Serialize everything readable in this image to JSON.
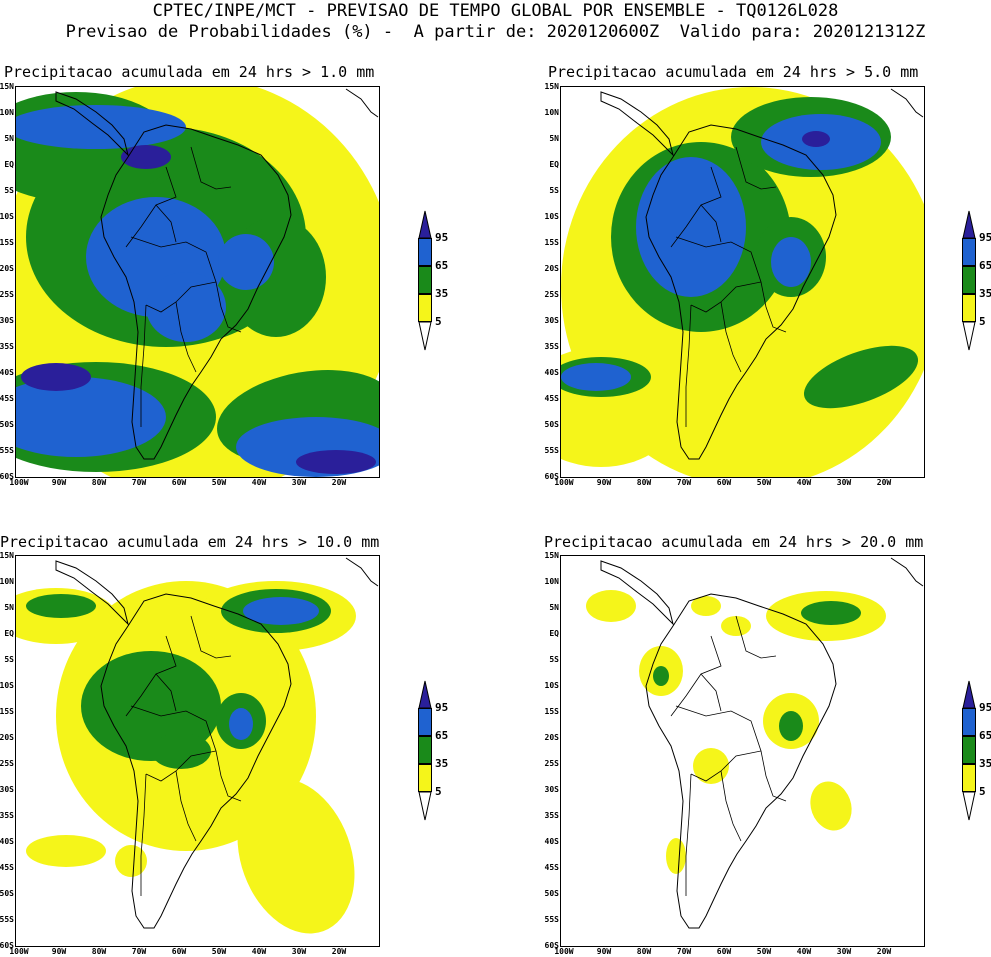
{
  "header": {
    "line1": "CPTEC/INPE/MCT - PREVISAO DE TEMPO GLOBAL POR ENSEMBLE - TQ0126L028",
    "line2": "Previsao de Probabilidades (%) -  A partir de: 2020120600Z  Valido para: 2020121312Z"
  },
  "panels": [
    {
      "title": "Precipitacao acumulada em 24 hrs > 1.0 mm"
    },
    {
      "title": "Precipitacao acumulada em 24 hrs > 5.0 mm"
    },
    {
      "title": "Precipitacao acumulada em 24 hrs > 10.0 mm"
    },
    {
      "title": "Precipitacao acumulada em 24 hrs > 20.0 mm"
    }
  ],
  "lat_labels": [
    "15N",
    "10N",
    "5N",
    "EQ",
    "5S",
    "10S",
    "15S",
    "20S",
    "25S",
    "30S",
    "35S",
    "40S",
    "45S",
    "50S",
    "55S",
    "60S"
  ],
  "lon_labels": [
    "100W",
    "90W",
    "80W",
    "70W",
    "60W",
    "50W",
    "40W",
    "30W",
    "20W"
  ],
  "colorbar": {
    "labels": [
      "95",
      "65",
      "35",
      "5"
    ],
    "colors": {
      "tip": "#2a1f9a",
      "c95": "#1f62d0",
      "c65": "#1a8a1a",
      "c35": "#f5f51a",
      "low": "#ffffff"
    }
  },
  "map_colors": {
    "yellow": "#f5f51a",
    "green": "#1a8a1a",
    "blue": "#1f62d0",
    "navy": "#2a1f9a"
  }
}
